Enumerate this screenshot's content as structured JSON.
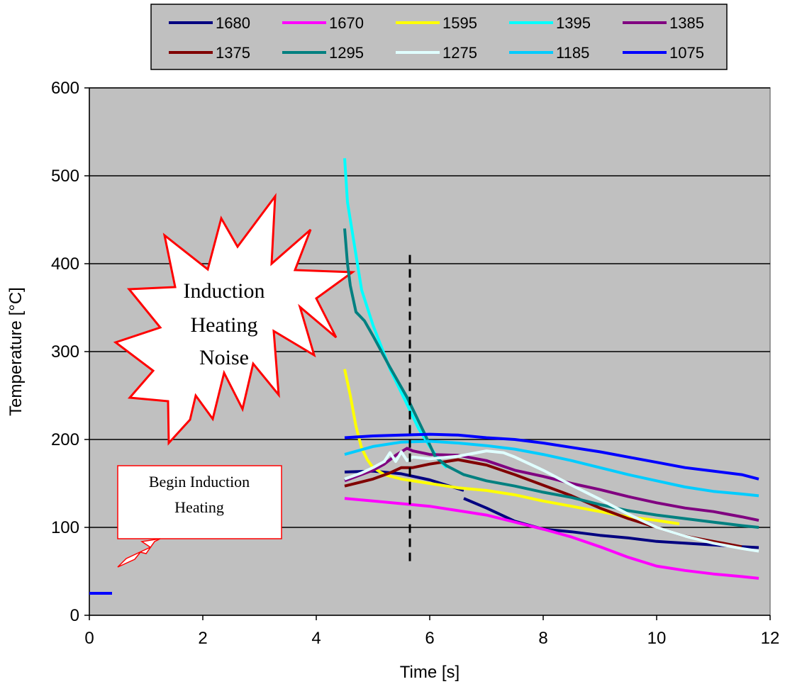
{
  "chart_data": {
    "type": "line",
    "xlabel": "Time [s]",
    "ylabel": "Temperature [°C]",
    "xlim": [
      0,
      12
    ],
    "ylim": [
      0,
      600
    ],
    "x_ticks": [
      0,
      2,
      4,
      6,
      8,
      10,
      12
    ],
    "y_ticks": [
      0,
      100,
      200,
      300,
      400,
      500,
      600
    ],
    "grid": "horizontal",
    "plot_background": "#c0c0c0",
    "legend_position": "top",
    "series": [
      {
        "name": "1680",
        "color": "#000080",
        "points": [
          [
            4.5,
            163
          ],
          [
            5.0,
            164
          ],
          [
            5.5,
            161
          ],
          [
            6.0,
            154
          ],
          [
            6.3,
            148
          ],
          [
            6.6,
            142
          ]
        ],
        "points2": [
          [
            6.6,
            133
          ],
          [
            7.0,
            122
          ],
          [
            7.5,
            107
          ],
          [
            8.0,
            98
          ],
          [
            8.5,
            95
          ],
          [
            9.0,
            91
          ],
          [
            9.5,
            88
          ],
          [
            10.0,
            84
          ],
          [
            10.5,
            82
          ],
          [
            11.0,
            80
          ],
          [
            11.5,
            78
          ],
          [
            11.8,
            77
          ]
        ]
      },
      {
        "name": "1670",
        "color": "#ff00ff",
        "points": [
          [
            4.5,
            133
          ],
          [
            5.0,
            130
          ],
          [
            5.5,
            127
          ],
          [
            6.0,
            124
          ],
          [
            6.5,
            119
          ],
          [
            7.0,
            114
          ],
          [
            7.5,
            106
          ],
          [
            8.0,
            98
          ],
          [
            8.5,
            89
          ],
          [
            9.0,
            78
          ],
          [
            9.5,
            66
          ],
          [
            10.0,
            56
          ],
          [
            10.5,
            51
          ],
          [
            11.0,
            47
          ],
          [
            11.5,
            44
          ],
          [
            11.8,
            42
          ]
        ]
      },
      {
        "name": "1595",
        "color": "#ffff00",
        "points": [
          [
            4.5,
            280
          ],
          [
            4.6,
            250
          ],
          [
            4.7,
            215
          ],
          [
            4.8,
            190
          ],
          [
            4.9,
            177
          ],
          [
            5.0,
            168
          ],
          [
            5.2,
            160
          ],
          [
            5.5,
            155
          ],
          [
            6.0,
            150
          ],
          [
            6.5,
            145
          ],
          [
            7.0,
            142
          ],
          [
            7.5,
            137
          ],
          [
            8.0,
            130
          ],
          [
            8.5,
            124
          ],
          [
            9.0,
            118
          ],
          [
            9.5,
            112
          ],
          [
            10.0,
            108
          ],
          [
            10.4,
            104
          ]
        ]
      },
      {
        "name": "1395",
        "color": "#00ffff",
        "points": [
          [
            4.5,
            520
          ],
          [
            4.55,
            470
          ],
          [
            4.65,
            430
          ],
          [
            4.8,
            370
          ],
          [
            5.0,
            330
          ],
          [
            5.3,
            280
          ],
          [
            5.6,
            240
          ],
          [
            5.8,
            213
          ],
          [
            6.0,
            192
          ],
          [
            6.2,
            174
          ],
          [
            6.3,
            168
          ]
        ]
      },
      {
        "name": "1385",
        "color": "#800080",
        "points": [
          [
            4.5,
            153
          ],
          [
            5.0,
            165
          ],
          [
            5.2,
            172
          ],
          [
            5.4,
            182
          ],
          [
            5.6,
            190
          ],
          [
            5.7,
            187
          ],
          [
            6.0,
            183
          ],
          [
            6.5,
            182
          ],
          [
            7.0,
            176
          ],
          [
            7.5,
            165
          ],
          [
            8.0,
            158
          ],
          [
            8.5,
            150
          ],
          [
            9.0,
            143
          ],
          [
            9.5,
            135
          ],
          [
            10.0,
            128
          ],
          [
            10.5,
            122
          ],
          [
            11.0,
            118
          ],
          [
            11.5,
            112
          ],
          [
            11.8,
            108
          ]
        ]
      },
      {
        "name": "1375",
        "color": "#800000",
        "points": [
          [
            4.5,
            147
          ],
          [
            5.0,
            155
          ],
          [
            5.3,
            162
          ],
          [
            5.5,
            168
          ],
          [
            5.7,
            168
          ],
          [
            6.0,
            172
          ],
          [
            6.5,
            177
          ],
          [
            7.0,
            171
          ],
          [
            7.5,
            160
          ],
          [
            8.0,
            148
          ],
          [
            8.5,
            136
          ],
          [
            9.0,
            122
          ],
          [
            9.5,
            110
          ],
          [
            10.0,
            100
          ],
          [
            10.5,
            90
          ],
          [
            11.0,
            84
          ],
          [
            11.5,
            78
          ]
        ]
      },
      {
        "name": "1295",
        "color": "#008080",
        "points": [
          [
            4.5,
            440
          ],
          [
            4.55,
            400
          ],
          [
            4.6,
            375
          ],
          [
            4.7,
            345
          ],
          [
            4.85,
            335
          ],
          [
            5.0,
            318
          ],
          [
            5.3,
            282
          ],
          [
            5.6,
            248
          ],
          [
            5.9,
            208
          ],
          [
            6.1,
            180
          ],
          [
            6.3,
            170
          ],
          [
            6.6,
            160
          ],
          [
            7.0,
            153
          ],
          [
            7.5,
            147
          ],
          [
            8.0,
            140
          ],
          [
            8.5,
            134
          ],
          [
            9.0,
            126
          ],
          [
            9.5,
            119
          ],
          [
            10.0,
            114
          ],
          [
            10.5,
            110
          ],
          [
            11.0,
            106
          ],
          [
            11.5,
            102
          ],
          [
            11.8,
            100
          ]
        ]
      },
      {
        "name": "1275",
        "color": "#e0ffff",
        "points": [
          [
            4.5,
            155
          ],
          [
            4.8,
            162
          ],
          [
            5.0,
            168
          ],
          [
            5.2,
            175
          ],
          [
            5.3,
            185
          ],
          [
            5.4,
            175
          ],
          [
            5.5,
            186
          ],
          [
            5.6,
            176
          ],
          [
            5.7,
            180
          ],
          [
            6.0,
            178
          ],
          [
            6.5,
            181
          ],
          [
            7.0,
            187
          ],
          [
            7.3,
            185
          ],
          [
            7.5,
            180
          ],
          [
            8.0,
            165
          ],
          [
            8.5,
            148
          ],
          [
            9.0,
            132
          ],
          [
            9.5,
            115
          ],
          [
            10.0,
            100
          ],
          [
            10.5,
            90
          ],
          [
            11.0,
            82
          ],
          [
            11.5,
            76
          ],
          [
            11.8,
            73
          ]
        ]
      },
      {
        "name": "1185",
        "color": "#00ccff",
        "points": [
          [
            4.5,
            183
          ],
          [
            5.0,
            192
          ],
          [
            5.5,
            197
          ],
          [
            6.0,
            198
          ],
          [
            6.5,
            196
          ],
          [
            7.0,
            193
          ],
          [
            7.5,
            189
          ],
          [
            8.0,
            183
          ],
          [
            8.5,
            176
          ],
          [
            9.0,
            168
          ],
          [
            9.5,
            160
          ],
          [
            10.0,
            153
          ],
          [
            10.5,
            146
          ],
          [
            11.0,
            141
          ],
          [
            11.5,
            138
          ],
          [
            11.8,
            136
          ]
        ]
      },
      {
        "name": "1075",
        "color": "#0000ff",
        "points": [
          [
            4.5,
            202
          ],
          [
            5.0,
            204
          ],
          [
            5.5,
            205
          ],
          [
            6.0,
            206
          ],
          [
            6.5,
            205
          ],
          [
            7.0,
            202
          ],
          [
            7.5,
            200
          ],
          [
            8.0,
            196
          ],
          [
            8.5,
            191
          ],
          [
            9.0,
            186
          ],
          [
            9.5,
            180
          ],
          [
            10.0,
            174
          ],
          [
            10.5,
            168
          ],
          [
            11.0,
            164
          ],
          [
            11.5,
            160
          ],
          [
            11.8,
            155
          ]
        ],
        "points2": [
          [
            0,
            25
          ],
          [
            0.4,
            25
          ]
        ]
      }
    ],
    "annotations": {
      "marker_time": 5.65,
      "marker_range": [
        60,
        410
      ],
      "noise_label_lines": [
        "Induction",
        "Heating",
        "Noise"
      ],
      "begin_label_lines": [
        "Begin Induction",
        "Heating"
      ]
    }
  }
}
